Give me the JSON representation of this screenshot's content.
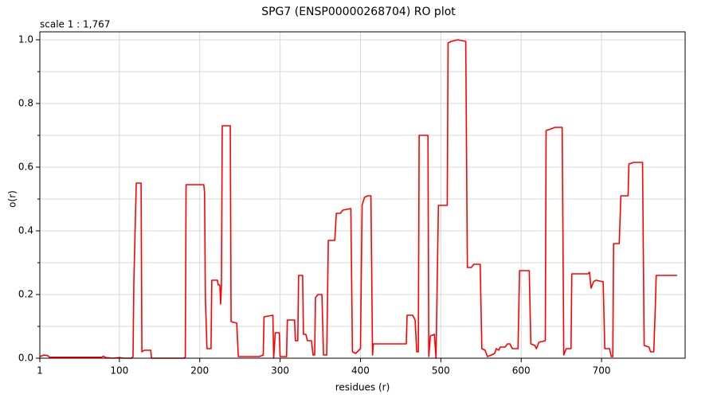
{
  "chart_data": {
    "type": "line",
    "title": "SPG7 (ENSP00000268704) RO plot",
    "annotation": "scale 1 : 1,767",
    "x_label": "residues (r)",
    "y_label": "o(r)",
    "color": "#ff0000",
    "grid": true,
    "xlim": [
      1,
      804
    ],
    "ylim": [
      0,
      1.025
    ],
    "xticks": [
      1,
      100,
      200,
      300,
      400,
      500,
      600,
      700
    ],
    "yticks": [
      {
        "value": 0,
        "label": "0.0"
      },
      0.2,
      0.4,
      0.6,
      0.8,
      {
        "value": 1,
        "label": "1.0"
      }
    ],
    "yticks_minor": [
      0.1,
      0.3,
      0.5,
      0.7,
      0.9
    ],
    "x": [
      1,
      6,
      11,
      13,
      78,
      80,
      83,
      92,
      100,
      105,
      115,
      117,
      118,
      121,
      127,
      128,
      131,
      139,
      140,
      181,
      182,
      183,
      205,
      206,
      207,
      209,
      214,
      215,
      222,
      223,
      225,
      226,
      227,
      228,
      238,
      239,
      246,
      248,
      274,
      279,
      280,
      291,
      292,
      294,
      299,
      300,
      308,
      309,
      318,
      319,
      322,
      323,
      328,
      329,
      332,
      334,
      339,
      341,
      343,
      344,
      347,
      352,
      354,
      358,
      360,
      368,
      370,
      375,
      378,
      388,
      390,
      394,
      400,
      402,
      405,
      409,
      413,
      415,
      416,
      457,
      458,
      465,
      468,
      470,
      472,
      473,
      484,
      485,
      487,
      492,
      494,
      497,
      508,
      509,
      513,
      521,
      531,
      533,
      538,
      541,
      549,
      551,
      555,
      558,
      563,
      567,
      569,
      572,
      574,
      580,
      583,
      586,
      589,
      596,
      598,
      610,
      612,
      617,
      619,
      622,
      630,
      631,
      637,
      642,
      651,
      653,
      656,
      662,
      663,
      683,
      685,
      687,
      690,
      693,
      702,
      704,
      710,
      712,
      714,
      715,
      722,
      724,
      733,
      734,
      740,
      751,
      753,
      759,
      761,
      765,
      767,
      768,
      794
    ],
    "values": [
      0.005,
      0.01,
      0.008,
      0.003,
      0.003,
      0.006,
      0.002,
      0,
      0.002,
      0,
      0,
      0.005,
      0.24,
      0.55,
      0.55,
      0.02,
      0.025,
      0.025,
      0,
      0,
      0.005,
      0.545,
      0.545,
      0.52,
      0.19,
      0.03,
      0.03,
      0.245,
      0.245,
      0.23,
      0.23,
      0.17,
      0.23,
      0.73,
      0.73,
      0.115,
      0.11,
      0.005,
      0.005,
      0.01,
      0.13,
      0.135,
      0,
      0.08,
      0.08,
      0.005,
      0.005,
      0.12,
      0.12,
      0.055,
      0.055,
      0.26,
      0.26,
      0.075,
      0.075,
      0.055,
      0.055,
      0.01,
      0.01,
      0.19,
      0.2,
      0.2,
      0.01,
      0.01,
      0.37,
      0.37,
      0.455,
      0.455,
      0.465,
      0.47,
      0.02,
      0.015,
      0.03,
      0.48,
      0.505,
      0.51,
      0.51,
      0.01,
      0.045,
      0.045,
      0.135,
      0.135,
      0.12,
      0.02,
      0.02,
      0.7,
      0.7,
      0.005,
      0.07,
      0.075,
      0,
      0.48,
      0.48,
      0.99,
      0.995,
      1.0,
      0.995,
      0.285,
      0.285,
      0.295,
      0.295,
      0.03,
      0.025,
      0.005,
      0.01,
      0.015,
      0.03,
      0.025,
      0.035,
      0.035,
      0.045,
      0.045,
      0.03,
      0.03,
      0.275,
      0.275,
      0.045,
      0.04,
      0.03,
      0.05,
      0.055,
      0.715,
      0.72,
      0.725,
      0.725,
      0.01,
      0.03,
      0.03,
      0.265,
      0.265,
      0.27,
      0.22,
      0.24,
      0.245,
      0.24,
      0.03,
      0.03,
      0.005,
      0.005,
      0.36,
      0.36,
      0.51,
      0.51,
      0.61,
      0.615,
      0.615,
      0.04,
      0.035,
      0.02,
      0.02,
      0.17,
      0.26,
      0.26
    ]
  }
}
